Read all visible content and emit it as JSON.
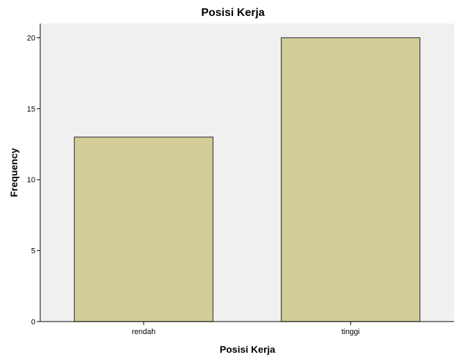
{
  "chart_data": {
    "type": "bar",
    "title": "Posisi Kerja",
    "xlabel": "Posisi Kerja",
    "ylabel": "Frequency",
    "categories": [
      "rendah",
      "tinggi"
    ],
    "values": [
      13,
      20
    ],
    "ylim": [
      0,
      21
    ],
    "yticks": [
      0,
      5,
      10,
      15,
      20
    ],
    "grid": false,
    "legend": "none",
    "colors": {
      "bar_fill": "#d3ce98",
      "bar_stroke": "#3c3c3c",
      "plot_background": "#f0f0f0",
      "axis": "#000000"
    }
  }
}
